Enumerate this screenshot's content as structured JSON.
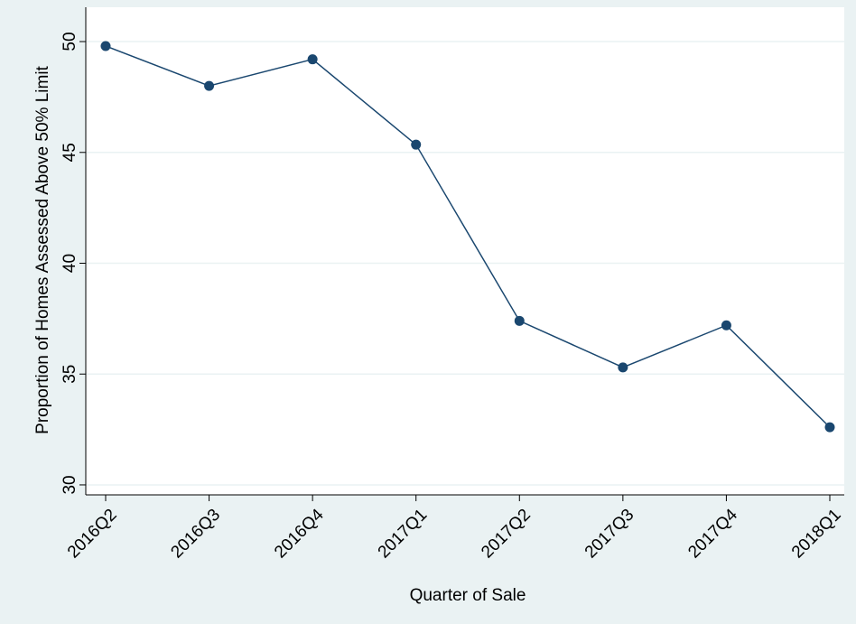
{
  "chart_data": {
    "type": "line",
    "x_label": "Quarter of Sale",
    "y_label": "Proportion of Homes Assessed Above 50% Limit",
    "categories": [
      "2016Q2",
      "2016Q3",
      "2016Q4",
      "2017Q1",
      "2017Q2",
      "2017Q3",
      "2017Q4",
      "2018Q1"
    ],
    "values": [
      49.8,
      48.0,
      49.2,
      45.35,
      37.4,
      35.3,
      37.2,
      32.6
    ],
    "color": "#1a476f",
    "ylim": [
      29.55,
      51.55
    ],
    "yticks": [
      30,
      35,
      40,
      45,
      50
    ],
    "grid": true
  }
}
